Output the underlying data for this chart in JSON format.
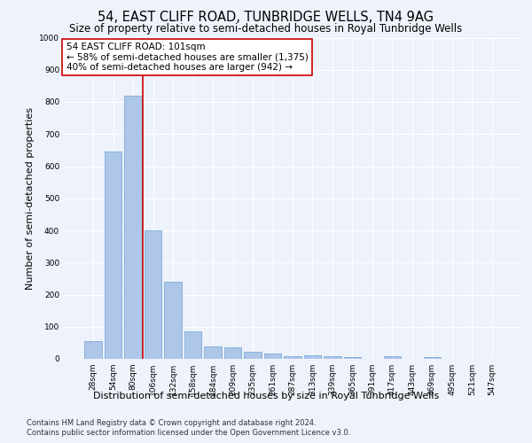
{
  "title": "54, EAST CLIFF ROAD, TUNBRIDGE WELLS, TN4 9AG",
  "subtitle": "Size of property relative to semi-detached houses in Royal Tunbridge Wells",
  "xlabel_bottom": "Distribution of semi-detached houses by size in Royal Tunbridge Wells",
  "ylabel": "Number of semi-detached properties",
  "footnote1": "Contains HM Land Registry data © Crown copyright and database right 2024.",
  "footnote2": "Contains public sector information licensed under the Open Government Licence v3.0.",
  "bar_labels": [
    "28sqm",
    "54sqm",
    "80sqm",
    "106sqm",
    "132sqm",
    "158sqm",
    "184sqm",
    "209sqm",
    "235sqm",
    "261sqm",
    "287sqm",
    "313sqm",
    "339sqm",
    "365sqm",
    "391sqm",
    "417sqm",
    "443sqm",
    "469sqm",
    "495sqm",
    "521sqm",
    "547sqm"
  ],
  "bar_values": [
    55,
    645,
    820,
    400,
    240,
    85,
    40,
    37,
    22,
    17,
    8,
    11,
    8,
    6,
    0,
    9,
    0,
    5,
    0,
    0,
    0
  ],
  "bar_color": "#aec6e8",
  "bar_edge_color": "#6aa3d5",
  "annotation_box_text": "54 EAST CLIFF ROAD: 101sqm\n← 58% of semi-detached houses are smaller (1,375)\n40% of semi-detached houses are larger (942) →",
  "vline_x_index": 2.5,
  "vline_color": "#cc0000",
  "annotation_box_edge_color": "#cc0000",
  "ylim": [
    0,
    1000
  ],
  "yticks": [
    0,
    100,
    200,
    300,
    400,
    500,
    600,
    700,
    800,
    900,
    1000
  ],
  "background_color": "#eef2fb",
  "grid_color": "#ffffff",
  "title_fontsize": 10.5,
  "subtitle_fontsize": 8.5,
  "annotation_fontsize": 7.5,
  "ylabel_fontsize": 8,
  "xlabel_fontsize": 8,
  "tick_fontsize": 6.5,
  "footnote_fontsize": 6
}
